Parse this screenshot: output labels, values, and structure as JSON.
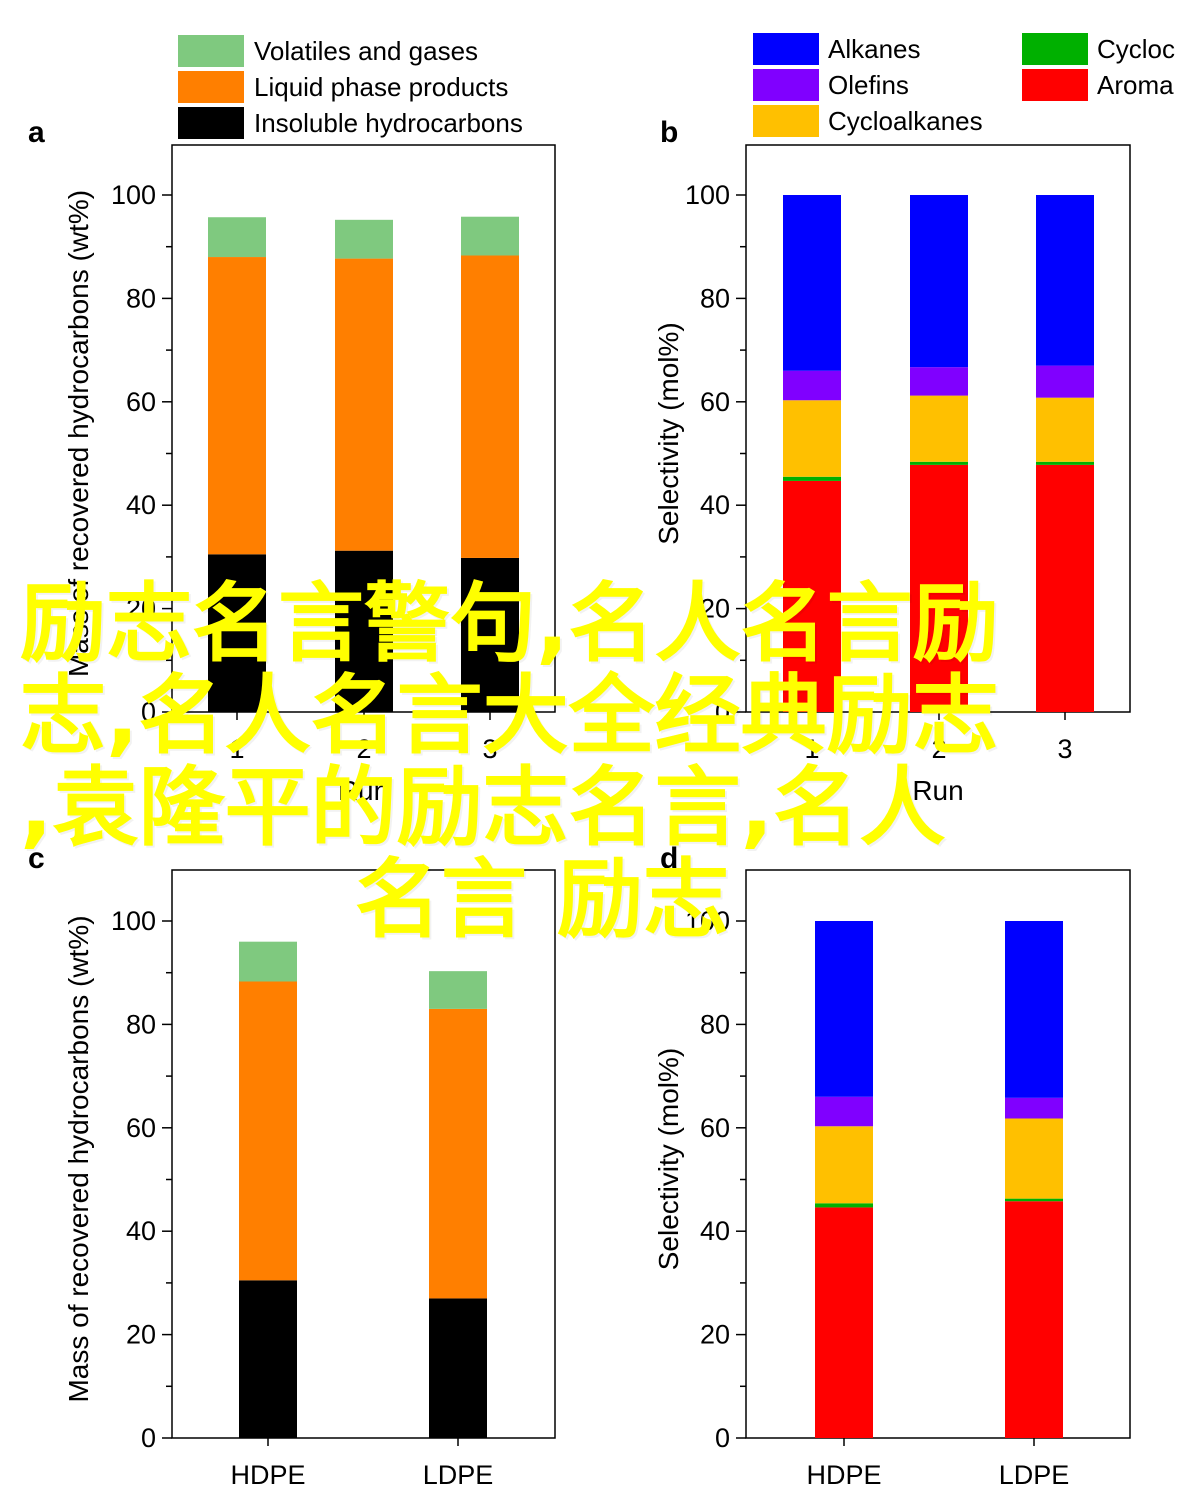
{
  "colors": {
    "volatiles": "#7fc97f",
    "liquid": "#ff7f00",
    "insoluble": "#000000",
    "alkanes": "#0000ff",
    "olefins": "#8000ff",
    "cycloalkanes": "#ffc000",
    "cycloolefins": "#00b000",
    "aromatics": "#ff0000",
    "watermark": "#ffff00"
  },
  "watermark": {
    "lines": [
      "励志名言警句,名人名言励",
      "志,名人名言大全经典励志",
      ",袁隆平的励志名言,名人",
      "名言 励志"
    ]
  },
  "chart_data": [
    {
      "panel": "a",
      "type": "bar",
      "stacked": true,
      "categories": [
        "1",
        "2",
        "3"
      ],
      "xlabel": "Run",
      "ylabel": "Mass of recovered hydrocarbons (wt%)",
      "ylim": [
        0,
        100
      ],
      "yticks": [
        0,
        20,
        40,
        60,
        80,
        100
      ],
      "series": [
        {
          "name": "Insoluble hydrocarbons",
          "color_key": "insoluble",
          "values": [
            30.5,
            31.2,
            29.8
          ]
        },
        {
          "name": "Liquid phase products",
          "color_key": "liquid",
          "values": [
            57.5,
            56.5,
            58.5
          ]
        },
        {
          "name": "Volatiles and gases",
          "color_key": "volatiles",
          "values": [
            7.7,
            7.5,
            7.5
          ]
        }
      ],
      "legend": {
        "placement": "top",
        "entries": [
          "Volatiles and gases",
          "Liquid phase products",
          "Insoluble hydrocarbons"
        ]
      }
    },
    {
      "panel": "b",
      "type": "bar",
      "stacked": true,
      "categories": [
        "1",
        "2",
        "3"
      ],
      "xlabel": "Run",
      "ylabel": "Selectivity (mol%)",
      "ylim": [
        0,
        100
      ],
      "yticks": [
        0,
        20,
        40,
        60,
        80,
        100
      ],
      "series": [
        {
          "name": "Aromatics",
          "color_key": "aromatics",
          "values": [
            44.7,
            47.8,
            47.8
          ]
        },
        {
          "name": "Cycloolefins",
          "color_key": "cycloolefins",
          "values": [
            0.8,
            0.6,
            0.6
          ]
        },
        {
          "name": "Cycloalkanes",
          "color_key": "cycloalkanes",
          "values": [
            14.8,
            12.8,
            12.4
          ]
        },
        {
          "name": "Olefins",
          "color_key": "olefins",
          "values": [
            5.7,
            5.5,
            6.2
          ]
        },
        {
          "name": "Alkanes",
          "color_key": "alkanes",
          "values": [
            34.0,
            33.3,
            33.0
          ]
        }
      ],
      "legend": {
        "placement": "top",
        "entries": [
          "Alkanes",
          "Olefins",
          "Cycloalkanes",
          "Cycloc",
          "Aroma"
        ]
      }
    },
    {
      "panel": "c",
      "type": "bar",
      "stacked": true,
      "categories": [
        "HDPE",
        "LDPE"
      ],
      "xlabel": "",
      "ylabel": "Mass of recovered hydrocarbons (wt%)",
      "ylim": [
        0,
        100
      ],
      "yticks": [
        0,
        20,
        40,
        60,
        80,
        100
      ],
      "series": [
        {
          "name": "Insoluble hydrocarbons",
          "color_key": "insoluble",
          "values": [
            30.5,
            27.0
          ]
        },
        {
          "name": "Liquid phase products",
          "color_key": "liquid",
          "values": [
            57.8,
            56.0
          ]
        },
        {
          "name": "Volatiles and gases",
          "color_key": "volatiles",
          "values": [
            7.7,
            7.3
          ]
        }
      ]
    },
    {
      "panel": "d",
      "type": "bar",
      "stacked": true,
      "categories": [
        "HDPE",
        "LDPE"
      ],
      "xlabel": "",
      "ylabel": "Selectivity (mol%)",
      "ylim": [
        0,
        100
      ],
      "yticks": [
        0,
        20,
        40,
        60,
        80,
        100
      ],
      "series": [
        {
          "name": "Aromatics",
          "color_key": "aromatics",
          "values": [
            44.6,
            45.8
          ]
        },
        {
          "name": "Cycloolefins",
          "color_key": "cycloolefins",
          "values": [
            0.8,
            0.5
          ]
        },
        {
          "name": "Cycloalkanes",
          "color_key": "cycloalkanes",
          "values": [
            14.9,
            15.5
          ]
        },
        {
          "name": "Olefins",
          "color_key": "olefins",
          "values": [
            5.7,
            4.0
          ]
        },
        {
          "name": "Alkanes",
          "color_key": "alkanes",
          "values": [
            34.0,
            34.2
          ]
        }
      ]
    }
  ]
}
